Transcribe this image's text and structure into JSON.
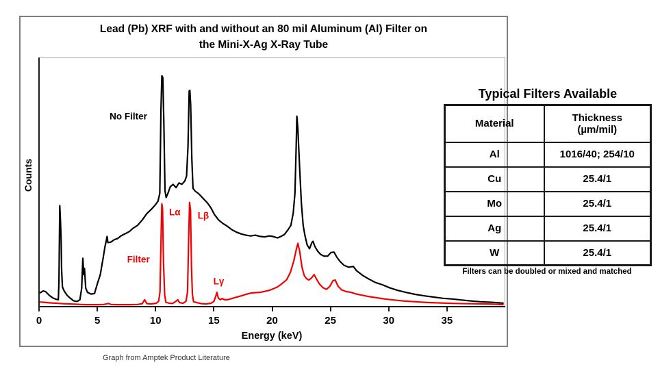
{
  "figure": {
    "title_line1": "Lead (Pb) XRF with and without an 80 mil Aluminum (Al) Filter on",
    "title_line2": "the Mini-X-Ag X-Ray Tube",
    "source_note": "Graph from Amptek Product Literature"
  },
  "chart_data": {
    "type": "line",
    "title": "Lead (Pb) XRF with and without an 80 mil Aluminum (Al) Filter on the Mini-X-Ag X-Ray Tube",
    "xlabel": "Energy (keV)",
    "ylabel": "Counts",
    "xlim": [
      0,
      40
    ],
    "x_ticks": [
      0,
      5,
      10,
      15,
      20,
      25,
      30,
      35
    ],
    "grid": false,
    "legend_position": "inline-annotations",
    "y_units": "relative counts (unlabeled axis), normalized 0-1",
    "series": [
      {
        "name": "No Filter",
        "color": "#000000",
        "points": [
          [
            0,
            0.055
          ],
          [
            0.3,
            0.064
          ],
          [
            0.5,
            0.061
          ],
          [
            0.8,
            0.047
          ],
          [
            1.1,
            0.036
          ],
          [
            1.4,
            0.03
          ],
          [
            1.6,
            0.028
          ],
          [
            1.65,
            0.1
          ],
          [
            1.72,
            0.41
          ],
          [
            1.78,
            0.35
          ],
          [
            1.84,
            0.27
          ],
          [
            1.88,
            0.15
          ],
          [
            1.95,
            0.08
          ],
          [
            2.1,
            0.063
          ],
          [
            2.35,
            0.046
          ],
          [
            2.6,
            0.035
          ],
          [
            2.9,
            0.024
          ],
          [
            3.2,
            0.021
          ],
          [
            3.45,
            0.028
          ],
          [
            3.6,
            0.075
          ],
          [
            3.7,
            0.196
          ],
          [
            3.78,
            0.13
          ],
          [
            3.84,
            0.155
          ],
          [
            3.95,
            0.075
          ],
          [
            4.1,
            0.058
          ],
          [
            4.4,
            0.051
          ],
          [
            4.7,
            0.053
          ],
          [
            4.95,
            0.094
          ],
          [
            5.2,
            0.13
          ],
          [
            5.45,
            0.2
          ],
          [
            5.6,
            0.243
          ],
          [
            5.72,
            0.27
          ],
          [
            5.78,
            0.285
          ],
          [
            5.85,
            0.26
          ],
          [
            6.1,
            0.262
          ],
          [
            6.4,
            0.272
          ],
          [
            6.7,
            0.277
          ],
          [
            7,
            0.288
          ],
          [
            7.3,
            0.295
          ],
          [
            7.7,
            0.305
          ],
          [
            8,
            0.318
          ],
          [
            8.4,
            0.33
          ],
          [
            8.8,
            0.352
          ],
          [
            9.2,
            0.378
          ],
          [
            9.6,
            0.396
          ],
          [
            9.9,
            0.412
          ],
          [
            10.15,
            0.428
          ],
          [
            10.3,
            0.46
          ],
          [
            10.4,
            0.8
          ],
          [
            10.48,
            0.937
          ],
          [
            10.56,
            0.93
          ],
          [
            10.65,
            0.75
          ],
          [
            10.75,
            0.47
          ],
          [
            10.85,
            0.443
          ],
          [
            11,
            0.46
          ],
          [
            11.2,
            0.487
          ],
          [
            11.45,
            0.496
          ],
          [
            11.7,
            0.483
          ],
          [
            11.95,
            0.502
          ],
          [
            12.2,
            0.497
          ],
          [
            12.45,
            0.51
          ],
          [
            12.6,
            0.53
          ],
          [
            12.72,
            0.65
          ],
          [
            12.82,
            0.875
          ],
          [
            12.88,
            0.878
          ],
          [
            12.95,
            0.82
          ],
          [
            13.05,
            0.6
          ],
          [
            13.15,
            0.48
          ],
          [
            13.35,
            0.468
          ],
          [
            13.6,
            0.46
          ],
          [
            13.85,
            0.448
          ],
          [
            14.1,
            0.435
          ],
          [
            14.4,
            0.42
          ],
          [
            14.7,
            0.4
          ],
          [
            15,
            0.373
          ],
          [
            15.35,
            0.352
          ],
          [
            15.7,
            0.338
          ],
          [
            16.1,
            0.326
          ],
          [
            16.5,
            0.312
          ],
          [
            16.9,
            0.302
          ],
          [
            17.3,
            0.295
          ],
          [
            17.7,
            0.29
          ],
          [
            18.1,
            0.287
          ],
          [
            18.5,
            0.29
          ],
          [
            18.9,
            0.285
          ],
          [
            19.3,
            0.283
          ],
          [
            19.7,
            0.287
          ],
          [
            20,
            0.285
          ],
          [
            20.4,
            0.279
          ],
          [
            20.7,
            0.285
          ],
          [
            21,
            0.293
          ],
          [
            21.3,
            0.312
          ],
          [
            21.55,
            0.33
          ],
          [
            21.75,
            0.38
          ],
          [
            21.9,
            0.46
          ],
          [
            22,
            0.65
          ],
          [
            22.06,
            0.773
          ],
          [
            22.15,
            0.72
          ],
          [
            22.3,
            0.56
          ],
          [
            22.45,
            0.42
          ],
          [
            22.6,
            0.33
          ],
          [
            22.75,
            0.29
          ],
          [
            22.95,
            0.25
          ],
          [
            23.15,
            0.235
          ],
          [
            23.35,
            0.26
          ],
          [
            23.45,
            0.265
          ],
          [
            23.6,
            0.245
          ],
          [
            23.85,
            0.225
          ],
          [
            24.1,
            0.212
          ],
          [
            24.4,
            0.205
          ],
          [
            24.7,
            0.205
          ],
          [
            25,
            0.22
          ],
          [
            25.25,
            0.221
          ],
          [
            25.5,
            0.2
          ],
          [
            25.8,
            0.182
          ],
          [
            26.1,
            0.168
          ],
          [
            26.5,
            0.16
          ],
          [
            26.9,
            0.163
          ],
          [
            27.2,
            0.145
          ],
          [
            27.7,
            0.127
          ],
          [
            28.2,
            0.113
          ],
          [
            28.8,
            0.098
          ],
          [
            29.4,
            0.089
          ],
          [
            30,
            0.077
          ],
          [
            30.7,
            0.066
          ],
          [
            31.4,
            0.058
          ],
          [
            32.2,
            0.05
          ],
          [
            33,
            0.044
          ],
          [
            33.8,
            0.039
          ],
          [
            34.6,
            0.034
          ],
          [
            35.4,
            0.031
          ],
          [
            36.2,
            0.027
          ],
          [
            37,
            0.023
          ],
          [
            37.8,
            0.02
          ],
          [
            38.6,
            0.018
          ],
          [
            39.3,
            0.016
          ],
          [
            39.8,
            0.014
          ]
        ]
      },
      {
        "name": "Filter",
        "color": "#f00000",
        "points": [
          [
            0,
            0.019
          ],
          [
            0.5,
            0.017
          ],
          [
            1,
            0.015
          ],
          [
            1.5,
            0.014
          ],
          [
            2,
            0.012
          ],
          [
            2.5,
            0.011
          ],
          [
            3,
            0.01
          ],
          [
            3.5,
            0.009
          ],
          [
            4,
            0.008
          ],
          [
            4.5,
            0.008
          ],
          [
            5,
            0.008
          ],
          [
            5.5,
            0.009
          ],
          [
            5.9,
            0.013
          ],
          [
            6.1,
            0.009
          ],
          [
            6.6,
            0.008
          ],
          [
            7.2,
            0.008
          ],
          [
            7.8,
            0.008
          ],
          [
            8.4,
            0.009
          ],
          [
            8.8,
            0.012
          ],
          [
            9,
            0.028
          ],
          [
            9.2,
            0.012
          ],
          [
            9.6,
            0.011
          ],
          [
            10,
            0.014
          ],
          [
            10.2,
            0.022
          ],
          [
            10.32,
            0.06
          ],
          [
            10.42,
            0.3
          ],
          [
            10.48,
            0.417
          ],
          [
            10.54,
            0.4
          ],
          [
            10.62,
            0.18
          ],
          [
            10.72,
            0.05
          ],
          [
            10.82,
            0.018
          ],
          [
            11.1,
            0.014
          ],
          [
            11.4,
            0.013
          ],
          [
            11.7,
            0.022
          ],
          [
            11.85,
            0.028
          ],
          [
            12,
            0.016
          ],
          [
            12.3,
            0.014
          ],
          [
            12.55,
            0.022
          ],
          [
            12.68,
            0.06
          ],
          [
            12.78,
            0.28
          ],
          [
            12.86,
            0.423
          ],
          [
            12.94,
            0.39
          ],
          [
            13.02,
            0.16
          ],
          [
            13.1,
            0.05
          ],
          [
            13.2,
            0.02
          ],
          [
            13.5,
            0.016
          ],
          [
            13.9,
            0.012
          ],
          [
            14.3,
            0.011
          ],
          [
            14.7,
            0.014
          ],
          [
            14.95,
            0.022
          ],
          [
            15.1,
            0.042
          ],
          [
            15.2,
            0.058
          ],
          [
            15.32,
            0.035
          ],
          [
            15.5,
            0.028
          ],
          [
            15.65,
            0.033
          ],
          [
            15.85,
            0.028
          ],
          [
            16.1,
            0.028
          ],
          [
            16.5,
            0.033
          ],
          [
            16.9,
            0.039
          ],
          [
            17.3,
            0.044
          ],
          [
            17.7,
            0.05
          ],
          [
            18.1,
            0.055
          ],
          [
            18.5,
            0.057
          ],
          [
            18.9,
            0.058
          ],
          [
            19.3,
            0.062
          ],
          [
            19.7,
            0.066
          ],
          [
            20,
            0.072
          ],
          [
            20.4,
            0.08
          ],
          [
            20.8,
            0.094
          ],
          [
            21.2,
            0.11
          ],
          [
            21.5,
            0.138
          ],
          [
            21.8,
            0.185
          ],
          [
            22,
            0.23
          ],
          [
            22.15,
            0.257
          ],
          [
            22.3,
            0.225
          ],
          [
            22.5,
            0.16
          ],
          [
            22.7,
            0.125
          ],
          [
            22.9,
            0.113
          ],
          [
            23.1,
            0.108
          ],
          [
            23.35,
            0.118
          ],
          [
            23.55,
            0.13
          ],
          [
            23.75,
            0.112
          ],
          [
            24,
            0.092
          ],
          [
            24.3,
            0.077
          ],
          [
            24.6,
            0.07
          ],
          [
            24.9,
            0.083
          ],
          [
            25.15,
            0.105
          ],
          [
            25.35,
            0.108
          ],
          [
            25.6,
            0.083
          ],
          [
            25.9,
            0.068
          ],
          [
            26.3,
            0.061
          ],
          [
            26.7,
            0.058
          ],
          [
            27.1,
            0.052
          ],
          [
            27.6,
            0.047
          ],
          [
            28.2,
            0.041
          ],
          [
            28.9,
            0.036
          ],
          [
            29.6,
            0.031
          ],
          [
            30.4,
            0.027
          ],
          [
            31.2,
            0.023
          ],
          [
            32.2,
            0.02
          ],
          [
            33.2,
            0.017
          ],
          [
            34.4,
            0.015
          ],
          [
            35.6,
            0.013
          ],
          [
            36.8,
            0.012
          ],
          [
            38,
            0.011
          ],
          [
            39,
            0.01
          ],
          [
            39.8,
            0.008
          ]
        ]
      }
    ],
    "annotations": [
      {
        "text": "No Filter",
        "x": 6.0,
        "v": 0.771,
        "color": "#000000"
      },
      {
        "text": "Filter",
        "x": 7.5,
        "v": 0.193,
        "color": "#f00000"
      },
      {
        "text": "Lα",
        "x": 11.1,
        "v": 0.384,
        "color": "#f00000"
      },
      {
        "text": "Lβ",
        "x": 13.55,
        "v": 0.37,
        "color": "#f00000"
      },
      {
        "text": "Lγ",
        "x": 14.9,
        "v": 0.102,
        "color": "#f00000"
      }
    ]
  },
  "filters_table": {
    "title": "Typical Filters Available",
    "columns": [
      "Material",
      "Thickness\n(µm/mil)"
    ],
    "rows": [
      [
        "Al",
        "1016/40; 254/10"
      ],
      [
        "Cu",
        "25.4/1"
      ],
      [
        "Mo",
        "25.4/1"
      ],
      [
        "Ag",
        "25.4/1"
      ],
      [
        "W",
        "25.4/1"
      ]
    ],
    "footnote": "Filters can be doubled or mixed and matched"
  }
}
